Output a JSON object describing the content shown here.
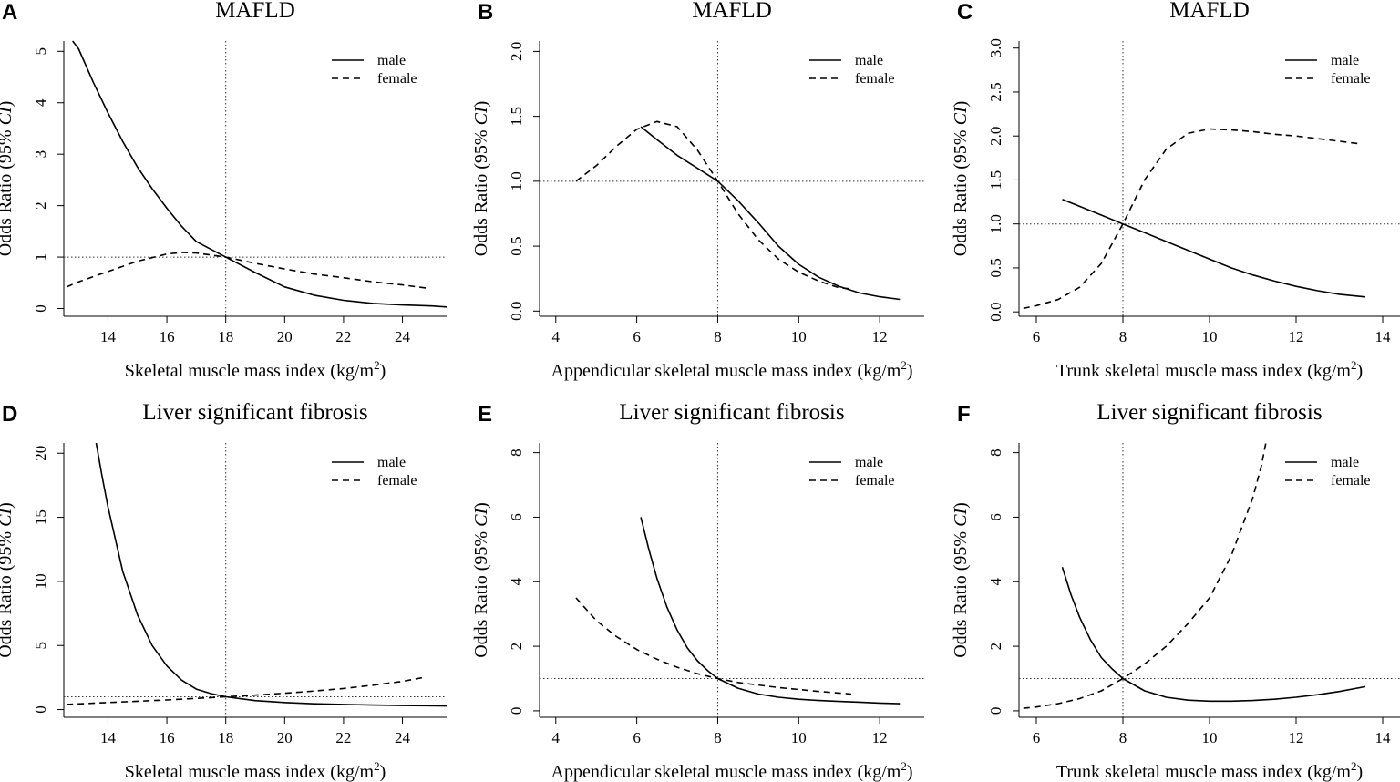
{
  "figure": {
    "panels": [
      "A",
      "B",
      "C",
      "D",
      "E",
      "F"
    ]
  },
  "common": {
    "ylabel_prefix": "Odds Ratio (95% ",
    "ylabel_italic": "CI",
    "ylabel_suffix": ")",
    "unit_open": "(kg/m",
    "unit_sup": "2",
    "unit_close": ")",
    "legend": [
      "male",
      "female"
    ]
  },
  "chart_data": [
    {
      "panel": "A",
      "type": "line",
      "title": "MAFLD",
      "xlabel": "Skeletal muscle mass index",
      "ylabel": "Odds Ratio (95% CI)",
      "xlim": [
        12.5,
        25.5
      ],
      "ylim": [
        -0.15,
        5.2
      ],
      "xticks": [
        14,
        16,
        18,
        20,
        22,
        24
      ],
      "yticks": [
        0,
        1,
        2,
        3,
        4,
        5
      ],
      "reference": {
        "x": 18,
        "y": 1
      },
      "legend": "top-right",
      "series": [
        {
          "name": "male",
          "style": "solid",
          "points": [
            [
              12.8,
              5.2
            ],
            [
              13,
              5.05
            ],
            [
              13.5,
              4.4
            ],
            [
              14,
              3.8
            ],
            [
              14.5,
              3.25
            ],
            [
              15,
              2.75
            ],
            [
              15.5,
              2.33
            ],
            [
              16,
              1.95
            ],
            [
              16.5,
              1.6
            ],
            [
              17,
              1.3
            ],
            [
              17.5,
              1.15
            ],
            [
              18,
              1.0
            ],
            [
              19,
              0.7
            ],
            [
              20,
              0.42
            ],
            [
              21,
              0.26
            ],
            [
              22,
              0.16
            ],
            [
              23,
              0.1
            ],
            [
              24,
              0.07
            ],
            [
              25,
              0.05
            ],
            [
              25.5,
              0.03
            ]
          ]
        },
        {
          "name": "female",
          "style": "dashed",
          "points": [
            [
              12.6,
              0.42
            ],
            [
              13,
              0.52
            ],
            [
              14,
              0.72
            ],
            [
              15,
              0.92
            ],
            [
              16,
              1.06
            ],
            [
              16.5,
              1.09
            ],
            [
              17,
              1.08
            ],
            [
              17.5,
              1.04
            ],
            [
              18,
              1.0
            ],
            [
              19,
              0.88
            ],
            [
              20,
              0.77
            ],
            [
              21,
              0.67
            ],
            [
              22,
              0.6
            ],
            [
              23,
              0.52
            ],
            [
              24,
              0.46
            ],
            [
              24.8,
              0.4
            ]
          ]
        }
      ]
    },
    {
      "panel": "B",
      "type": "line",
      "title": "MAFLD",
      "xlabel": "Appendicular skeletal muscle mass index",
      "ylabel": "Odds Ratio (95% CI)",
      "xlim": [
        3.6,
        13.1
      ],
      "ylim": [
        -0.04,
        2.08
      ],
      "xticks": [
        4,
        6,
        8,
        10,
        12
      ],
      "yticks": [
        0.0,
        0.5,
        1.0,
        1.5,
        2.0
      ],
      "reference": {
        "x": 8,
        "y": 1
      },
      "legend": "top-right",
      "series": [
        {
          "name": "male",
          "style": "solid",
          "points": [
            [
              6.1,
              1.42
            ],
            [
              6.5,
              1.32
            ],
            [
              7,
              1.2
            ],
            [
              7.5,
              1.1
            ],
            [
              8,
              1.0
            ],
            [
              8.5,
              0.85
            ],
            [
              9,
              0.68
            ],
            [
              9.5,
              0.5
            ],
            [
              10,
              0.36
            ],
            [
              10.5,
              0.26
            ],
            [
              11,
              0.19
            ],
            [
              11.5,
              0.14
            ],
            [
              12,
              0.11
            ],
            [
              12.5,
              0.09
            ]
          ]
        },
        {
          "name": "female",
          "style": "dashed",
          "points": [
            [
              4.5,
              1.0
            ],
            [
              5,
              1.12
            ],
            [
              5.5,
              1.27
            ],
            [
              6,
              1.4
            ],
            [
              6.5,
              1.46
            ],
            [
              7,
              1.42
            ],
            [
              7.5,
              1.24
            ],
            [
              8,
              1.0
            ],
            [
              8.5,
              0.75
            ],
            [
              9,
              0.55
            ],
            [
              9.5,
              0.4
            ],
            [
              10,
              0.3
            ],
            [
              10.5,
              0.23
            ],
            [
              11,
              0.18
            ],
            [
              11.3,
              0.17
            ]
          ]
        }
      ]
    },
    {
      "panel": "C",
      "type": "line",
      "title": "MAFLD",
      "xlabel": "Trunk skeletal muscle mass index",
      "ylabel": "Odds Ratio (95% CI)",
      "xlim": [
        5.6,
        14.4
      ],
      "ylim": [
        -0.05,
        3.08
      ],
      "xticks": [
        6,
        8,
        10,
        12,
        14
      ],
      "yticks": [
        0.0,
        0.5,
        1.0,
        1.5,
        2.0,
        2.5,
        3.0
      ],
      "reference": {
        "x": 8,
        "y": 1
      },
      "legend": "top-right",
      "series": [
        {
          "name": "male",
          "style": "solid",
          "points": [
            [
              6.6,
              1.28
            ],
            [
              7,
              1.2
            ],
            [
              7.5,
              1.1
            ],
            [
              8,
              1.0
            ],
            [
              8.5,
              0.9
            ],
            [
              9,
              0.8
            ],
            [
              9.5,
              0.7
            ],
            [
              10,
              0.6
            ],
            [
              10.5,
              0.5
            ],
            [
              11,
              0.42
            ],
            [
              11.5,
              0.35
            ],
            [
              12,
              0.29
            ],
            [
              12.5,
              0.24
            ],
            [
              13,
              0.2
            ],
            [
              13.6,
              0.17
            ]
          ]
        },
        {
          "name": "female",
          "style": "dashed",
          "points": [
            [
              5.7,
              0.04
            ],
            [
              6,
              0.07
            ],
            [
              6.5,
              0.14
            ],
            [
              7,
              0.28
            ],
            [
              7.5,
              0.55
            ],
            [
              8,
              1.0
            ],
            [
              8.5,
              1.5
            ],
            [
              9,
              1.85
            ],
            [
              9.5,
              2.03
            ],
            [
              10,
              2.08
            ],
            [
              10.5,
              2.07
            ],
            [
              11,
              2.05
            ],
            [
              11.5,
              2.02
            ],
            [
              12,
              2.0
            ],
            [
              12.5,
              1.97
            ],
            [
              13,
              1.94
            ],
            [
              13.5,
              1.91
            ]
          ]
        }
      ]
    },
    {
      "panel": "D",
      "type": "line",
      "title": "Liver significant fibrosis",
      "xlabel": "Skeletal muscle mass index",
      "ylabel": "Odds Ratio (95% CI)",
      "xlim": [
        12.5,
        25.5
      ],
      "ylim": [
        -0.6,
        20.8
      ],
      "xticks": [
        14,
        16,
        18,
        20,
        22,
        24
      ],
      "yticks": [
        0,
        5,
        10,
        15,
        20
      ],
      "reference": {
        "x": 18,
        "y": 1
      },
      "legend": "top-right",
      "series": [
        {
          "name": "male",
          "style": "solid",
          "points": [
            [
              13.6,
              20.8
            ],
            [
              13.8,
              18.2
            ],
            [
              14,
              15.8
            ],
            [
              14.5,
              10.8
            ],
            [
              15,
              7.4
            ],
            [
              15.5,
              5.0
            ],
            [
              16,
              3.4
            ],
            [
              16.5,
              2.3
            ],
            [
              17,
              1.6
            ],
            [
              17.5,
              1.25
            ],
            [
              18,
              1.0
            ],
            [
              19,
              0.7
            ],
            [
              20,
              0.55
            ],
            [
              21,
              0.45
            ],
            [
              22,
              0.4
            ],
            [
              23,
              0.35
            ],
            [
              24,
              0.32
            ],
            [
              25.5,
              0.28
            ]
          ]
        },
        {
          "name": "female",
          "style": "dashed",
          "points": [
            [
              12.6,
              0.4
            ],
            [
              14,
              0.55
            ],
            [
              15,
              0.65
            ],
            [
              16,
              0.75
            ],
            [
              17,
              0.87
            ],
            [
              18,
              1.0
            ],
            [
              19,
              1.13
            ],
            [
              20,
              1.28
            ],
            [
              21,
              1.45
            ],
            [
              22,
              1.65
            ],
            [
              23,
              1.9
            ],
            [
              24,
              2.2
            ],
            [
              24.7,
              2.5
            ]
          ]
        }
      ]
    },
    {
      "panel": "E",
      "type": "line",
      "title": "Liver significant fibrosis",
      "xlabel": "Appendicular skeletal muscle mass index",
      "ylabel": "Odds Ratio (95% CI)",
      "xlim": [
        3.6,
        13.1
      ],
      "ylim": [
        -0.2,
        8.3
      ],
      "xticks": [
        4,
        6,
        8,
        10,
        12
      ],
      "yticks": [
        0,
        2,
        4,
        6,
        8
      ],
      "reference": {
        "x": 8,
        "y": 1
      },
      "legend": "top-right",
      "series": [
        {
          "name": "male",
          "style": "solid",
          "points": [
            [
              6.1,
              6.0
            ],
            [
              6.3,
              5.0
            ],
            [
              6.5,
              4.1
            ],
            [
              6.75,
              3.2
            ],
            [
              7,
              2.5
            ],
            [
              7.25,
              1.95
            ],
            [
              7.5,
              1.55
            ],
            [
              7.75,
              1.25
            ],
            [
              8,
              1.0
            ],
            [
              8.5,
              0.7
            ],
            [
              9,
              0.52
            ],
            [
              9.5,
              0.42
            ],
            [
              10,
              0.36
            ],
            [
              10.5,
              0.32
            ],
            [
              11,
              0.29
            ],
            [
              11.5,
              0.27
            ],
            [
              12,
              0.24
            ],
            [
              12.5,
              0.22
            ]
          ]
        },
        {
          "name": "female",
          "style": "dashed",
          "points": [
            [
              4.5,
              3.5
            ],
            [
              5,
              2.8
            ],
            [
              5.5,
              2.3
            ],
            [
              6,
              1.9
            ],
            [
              6.5,
              1.6
            ],
            [
              7,
              1.35
            ],
            [
              7.5,
              1.15
            ],
            [
              8,
              1.0
            ],
            [
              8.5,
              0.88
            ],
            [
              9,
              0.8
            ],
            [
              9.5,
              0.72
            ],
            [
              10,
              0.66
            ],
            [
              10.5,
              0.6
            ],
            [
              11,
              0.55
            ],
            [
              11.3,
              0.52
            ]
          ]
        }
      ]
    },
    {
      "panel": "F",
      "type": "line",
      "title": "Liver significant fibrosis",
      "xlabel": "Trunk skeletal muscle mass index",
      "ylabel": "Odds Ratio (95% CI)",
      "xlim": [
        5.6,
        14.4
      ],
      "ylim": [
        -0.2,
        8.3
      ],
      "xticks": [
        6,
        8,
        10,
        12,
        14
      ],
      "yticks": [
        0,
        2,
        4,
        6,
        8
      ],
      "reference": {
        "x": 8,
        "y": 1
      },
      "legend": "top-right",
      "series": [
        {
          "name": "male",
          "style": "solid",
          "points": [
            [
              6.6,
              4.45
            ],
            [
              6.8,
              3.6
            ],
            [
              7,
              2.9
            ],
            [
              7.25,
              2.2
            ],
            [
              7.5,
              1.65
            ],
            [
              7.75,
              1.3
            ],
            [
              8,
              1.0
            ],
            [
              8.5,
              0.62
            ],
            [
              9,
              0.42
            ],
            [
              9.5,
              0.33
            ],
            [
              10,
              0.3
            ],
            [
              10.5,
              0.3
            ],
            [
              11,
              0.32
            ],
            [
              11.5,
              0.36
            ],
            [
              12,
              0.42
            ],
            [
              12.5,
              0.5
            ],
            [
              13,
              0.6
            ],
            [
              13.6,
              0.75
            ]
          ]
        },
        {
          "name": "female",
          "style": "dashed",
          "points": [
            [
              5.7,
              0.08
            ],
            [
              6,
              0.12
            ],
            [
              6.5,
              0.22
            ],
            [
              7,
              0.38
            ],
            [
              7.5,
              0.62
            ],
            [
              8,
              1.0
            ],
            [
              8.5,
              1.45
            ],
            [
              9,
              2.0
            ],
            [
              9.5,
              2.7
            ],
            [
              10,
              3.5
            ],
            [
              10.5,
              4.8
            ],
            [
              11,
              6.6
            ],
            [
              11.2,
              7.6
            ],
            [
              11.3,
              8.3
            ]
          ]
        }
      ]
    }
  ]
}
